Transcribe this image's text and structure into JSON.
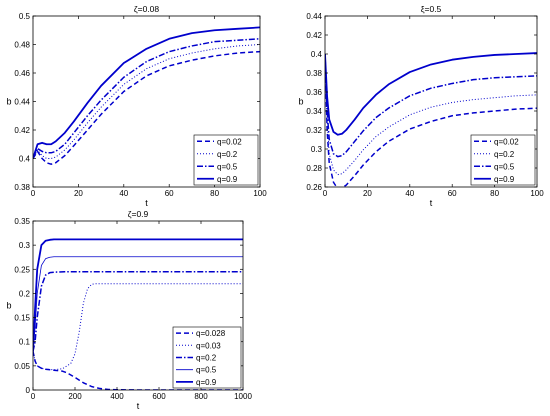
{
  "chart_data": [
    {
      "type": "line",
      "title": "ζ=0.08",
      "xlabel": "t",
      "ylabel": "b",
      "xlim": [
        0,
        100
      ],
      "ylim": [
        0.38,
        0.5
      ],
      "xticks": [
        0,
        20,
        40,
        60,
        80,
        100
      ],
      "yticks": [
        0.38,
        0.4,
        0.42,
        0.44,
        0.46,
        0.48,
        0.5
      ],
      "ytick_labels": [
        "0.38",
        "0.4",
        "0.42",
        "0.44",
        "0.46",
        "0.48",
        "0.5"
      ],
      "legend_position": "bottom-right",
      "color": "#0000cc",
      "series": [
        {
          "name": "q=0.02",
          "style": "dashed",
          "x": [
            0,
            2,
            4,
            6,
            8,
            10,
            14,
            18,
            24,
            30,
            40,
            50,
            60,
            70,
            80,
            90,
            100
          ],
          "values": [
            0.4,
            0.405,
            0.4,
            0.397,
            0.396,
            0.397,
            0.402,
            0.409,
            0.42,
            0.431,
            0.447,
            0.458,
            0.465,
            0.469,
            0.472,
            0.474,
            0.475
          ]
        },
        {
          "name": "q=0.2",
          "style": "dotted",
          "x": [
            0,
            2,
            4,
            6,
            8,
            10,
            14,
            18,
            24,
            30,
            40,
            50,
            60,
            70,
            80,
            90,
            100
          ],
          "values": [
            0.4,
            0.406,
            0.402,
            0.4,
            0.4,
            0.401,
            0.406,
            0.413,
            0.425,
            0.436,
            0.452,
            0.463,
            0.47,
            0.474,
            0.477,
            0.479,
            0.48
          ]
        },
        {
          "name": "q=0.5",
          "style": "dashdot",
          "x": [
            0,
            2,
            4,
            6,
            8,
            10,
            14,
            18,
            24,
            30,
            40,
            50,
            60,
            70,
            80,
            90,
            100
          ],
          "values": [
            0.4,
            0.407,
            0.405,
            0.404,
            0.404,
            0.405,
            0.41,
            0.418,
            0.43,
            0.441,
            0.457,
            0.468,
            0.475,
            0.479,
            0.482,
            0.483,
            0.484
          ]
        },
        {
          "name": "q=0.9",
          "style": "solid",
          "x": [
            0,
            2,
            4,
            6,
            8,
            10,
            14,
            18,
            24,
            30,
            40,
            50,
            60,
            70,
            80,
            90,
            100
          ],
          "values": [
            0.4,
            0.41,
            0.411,
            0.41,
            0.41,
            0.412,
            0.418,
            0.426,
            0.439,
            0.451,
            0.467,
            0.477,
            0.484,
            0.488,
            0.49,
            0.491,
            0.492
          ]
        }
      ]
    },
    {
      "type": "line",
      "title": "ξ=0.5",
      "xlabel": "t",
      "ylabel": "b",
      "xlim": [
        0,
        100
      ],
      "ylim": [
        0.26,
        0.44
      ],
      "xticks": [
        0,
        20,
        40,
        60,
        80,
        100
      ],
      "yticks": [
        0.26,
        0.28,
        0.3,
        0.32,
        0.34,
        0.36,
        0.38,
        0.4,
        0.42,
        0.44
      ],
      "ytick_labels": [
        "0.26",
        "0.28",
        "0.3",
        "0.32",
        "0.34",
        "0.36",
        "0.38",
        "0.4",
        "0.42",
        "0.44"
      ],
      "legend_position": "bottom-right",
      "color": "#0000cc",
      "series": [
        {
          "name": "q=0.02",
          "style": "dashed",
          "x": [
            0,
            1,
            2,
            4,
            6,
            8,
            10,
            14,
            18,
            24,
            30,
            40,
            50,
            60,
            70,
            80,
            90,
            100
          ],
          "values": [
            0.4,
            0.32,
            0.285,
            0.265,
            0.258,
            0.259,
            0.262,
            0.272,
            0.283,
            0.297,
            0.308,
            0.321,
            0.329,
            0.335,
            0.338,
            0.34,
            0.342,
            0.343
          ]
        },
        {
          "name": "q=0.2",
          "style": "dotted",
          "x": [
            0,
            1,
            2,
            4,
            6,
            8,
            10,
            14,
            18,
            24,
            30,
            40,
            50,
            60,
            70,
            80,
            90,
            100
          ],
          "values": [
            0.4,
            0.33,
            0.295,
            0.278,
            0.273,
            0.274,
            0.278,
            0.288,
            0.299,
            0.313,
            0.323,
            0.336,
            0.344,
            0.349,
            0.352,
            0.354,
            0.356,
            0.357
          ]
        },
        {
          "name": "q=0.5",
          "style": "dashdot",
          "x": [
            0,
            1,
            2,
            4,
            6,
            8,
            10,
            14,
            18,
            24,
            30,
            40,
            50,
            60,
            70,
            80,
            90,
            100
          ],
          "values": [
            0.4,
            0.34,
            0.31,
            0.295,
            0.292,
            0.293,
            0.297,
            0.308,
            0.319,
            0.333,
            0.343,
            0.356,
            0.364,
            0.369,
            0.373,
            0.375,
            0.376,
            0.377
          ]
        },
        {
          "name": "q=0.9",
          "style": "solid",
          "x": [
            0,
            1,
            2,
            4,
            6,
            8,
            10,
            14,
            18,
            24,
            30,
            40,
            50,
            60,
            70,
            80,
            90,
            100
          ],
          "values": [
            0.4,
            0.355,
            0.331,
            0.318,
            0.315,
            0.316,
            0.32,
            0.331,
            0.343,
            0.357,
            0.368,
            0.381,
            0.389,
            0.394,
            0.397,
            0.399,
            0.4,
            0.401
          ]
        }
      ]
    },
    {
      "type": "line",
      "title": "ζ=0.9",
      "xlabel": "t",
      "ylabel": "b",
      "xlim": [
        0,
        1000
      ],
      "ylim": [
        0,
        0.35
      ],
      "xticks": [
        0,
        200,
        400,
        600,
        800,
        1000
      ],
      "yticks": [
        0,
        0.05,
        0.1,
        0.15,
        0.2,
        0.25,
        0.3,
        0.35
      ],
      "ytick_labels": [
        "0",
        "0.05",
        "0.1",
        "0.15",
        "0.2",
        "0.25",
        "0.3",
        "0.35"
      ],
      "legend_position": "bottom-right",
      "color": "#0000cc",
      "series": [
        {
          "name": "q=0.028",
          "style": "dashed",
          "x": [
            0,
            10,
            20,
            40,
            60,
            100,
            140,
            160,
            200,
            240,
            280,
            320,
            360,
            400,
            500,
            600,
            800,
            1000
          ],
          "values": [
            0.08,
            0.06,
            0.05,
            0.045,
            0.043,
            0.041,
            0.039,
            0.036,
            0.026,
            0.015,
            0.007,
            0.003,
            0.001,
            0.0005,
            0.0001,
            0,
            0,
            0
          ]
        },
        {
          "name": "q=0.03",
          "style": "dotted",
          "x": [
            0,
            10,
            20,
            40,
            60,
            100,
            140,
            180,
            200,
            220,
            240,
            260,
            280,
            300,
            400,
            600,
            800,
            1000
          ],
          "values": [
            0.08,
            0.06,
            0.05,
            0.045,
            0.043,
            0.042,
            0.044,
            0.055,
            0.075,
            0.12,
            0.18,
            0.21,
            0.219,
            0.22,
            0.22,
            0.22,
            0.22,
            0.22
          ]
        },
        {
          "name": "q=0.2",
          "style": "dashdot",
          "x": [
            0,
            10,
            20,
            40,
            60,
            80,
            100,
            150,
            200,
            400,
            600,
            800,
            1000
          ],
          "values": [
            0.08,
            0.1,
            0.15,
            0.215,
            0.238,
            0.243,
            0.244,
            0.245,
            0.245,
            0.245,
            0.245,
            0.245,
            0.245
          ]
        },
        {
          "name": "q=0.5",
          "style": "thin",
          "x": [
            0,
            10,
            20,
            40,
            60,
            80,
            100,
            150,
            200,
            400,
            600,
            800,
            1000
          ],
          "values": [
            0.08,
            0.13,
            0.2,
            0.258,
            0.272,
            0.275,
            0.276,
            0.276,
            0.276,
            0.276,
            0.276,
            0.276,
            0.276
          ]
        },
        {
          "name": "q=0.9",
          "style": "solid",
          "x": [
            0,
            10,
            20,
            40,
            60,
            80,
            100,
            150,
            200,
            400,
            600,
            800,
            1000
          ],
          "values": [
            0.08,
            0.17,
            0.25,
            0.3,
            0.309,
            0.311,
            0.312,
            0.312,
            0.312,
            0.312,
            0.312,
            0.312,
            0.312
          ]
        }
      ]
    }
  ]
}
